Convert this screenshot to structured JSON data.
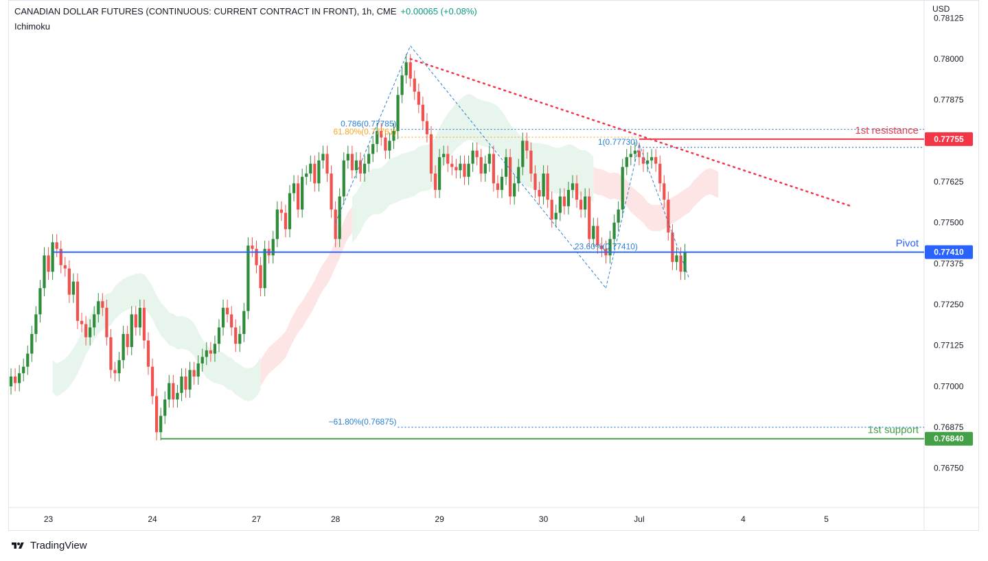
{
  "header": {
    "title": "CANADIAN DOLLAR FUTURES (CONTINUOUS: CURRENT CONTRACT IN FRONT), 1h, CME",
    "change": "+0.00065 (+0.08%)",
    "indicator": "Ichimoku",
    "currency": "USD"
  },
  "brand": {
    "name": "TradingView"
  },
  "colors": {
    "up": "#26a69a",
    "candle_up": "#2e8b3a",
    "candle_down": "#ef5350",
    "resistance": "#f23645",
    "pivot": "#2962ff",
    "support": "#43a047",
    "fib_blue": "#2a7fd4",
    "fib_orange": "#f5a623",
    "cloud_green": "#e8f5ec",
    "cloud_red": "#fde5e5"
  },
  "chart_data": {
    "type": "candlestick",
    "title": "CANADIAN DOLLAR FUTURES (CONTINUOUS: CURRENT CONTRACT IN FRONT), 1h, CME",
    "ylim": [
      0.7663,
      0.7818
    ],
    "y_ticks": [
      "0.78125",
      "0.78000",
      "0.77875",
      "0.77625",
      "0.77500",
      "0.77375",
      "0.77250",
      "0.77125",
      "0.77000",
      "0.76875",
      "0.76750"
    ],
    "x_ticks": [
      {
        "label": "23",
        "index": 9
      },
      {
        "label": "24",
        "index": 34
      },
      {
        "label": "27",
        "index": 59
      },
      {
        "label": "28",
        "index": 78
      },
      {
        "label": "29",
        "index": 103
      },
      {
        "label": "30",
        "index": 128
      },
      {
        "label": "Jul",
        "index": 151
      },
      {
        "label": "4",
        "index": 176
      },
      {
        "label": "5",
        "index": 196
      }
    ],
    "x_count": 220,
    "closes": [
      0.7703,
      0.7701,
      0.7704,
      0.7706,
      0.771,
      0.7716,
      0.7722,
      0.773,
      0.774,
      0.7735,
      0.7744,
      0.7742,
      0.7737,
      0.7736,
      0.7728,
      0.7732,
      0.772,
      0.7719,
      0.7715,
      0.7718,
      0.7722,
      0.7726,
      0.7724,
      0.7715,
      0.7705,
      0.7704,
      0.7708,
      0.7716,
      0.7712,
      0.7722,
      0.7718,
      0.7724,
      0.7714,
      0.7706,
      0.7697,
      0.7686,
      0.7691,
      0.7696,
      0.7701,
      0.7696,
      0.7698,
      0.7703,
      0.7699,
      0.7705,
      0.7703,
      0.7707,
      0.7709,
      0.7711,
      0.771,
      0.7713,
      0.7718,
      0.7724,
      0.7722,
      0.7718,
      0.7713,
      0.7716,
      0.7723,
      0.7743,
      0.7742,
      0.7737,
      0.773,
      0.7742,
      0.774,
      0.7745,
      0.7754,
      0.7753,
      0.7748,
      0.7759,
      0.7762,
      0.7754,
      0.7764,
      0.7765,
      0.7768,
      0.7762,
      0.7769,
      0.7771,
      0.7765,
      0.7754,
      0.7745,
      0.7758,
      0.7769,
      0.7771,
      0.7766,
      0.7769,
      0.7765,
      0.7768,
      0.7771,
      0.7774,
      0.7778,
      0.7776,
      0.7772,
      0.7775,
      0.7778,
      0.7789,
      0.7795,
      0.7799,
      0.7794,
      0.779,
      0.7786,
      0.7781,
      0.7777,
      0.7765,
      0.776,
      0.777,
      0.7771,
      0.7768,
      0.7767,
      0.7766,
      0.7768,
      0.7764,
      0.7768,
      0.7772,
      0.777,
      0.7765,
      0.7768,
      0.7771,
      0.7762,
      0.776,
      0.7764,
      0.777,
      0.7758,
      0.7762,
      0.7767,
      0.7775,
      0.7772,
      0.7765,
      0.776,
      0.7758,
      0.7765,
      0.7757,
      0.7751,
      0.7753,
      0.7758,
      0.7755,
      0.776,
      0.7762,
      0.7757,
      0.7754,
      0.7758,
      0.7745,
      0.7749,
      0.7743,
      0.7742,
      0.774,
      0.7745,
      0.775,
      0.7754,
      0.7767,
      0.777,
      0.7771,
      0.7772,
      0.777,
      0.7768,
      0.7769,
      0.777,
      0.7768,
      0.7762,
      0.7757,
      0.7747,
      0.7738,
      0.774,
      0.7735,
      0.7741
    ],
    "levels": [
      {
        "name": "1st resistance",
        "value": 0.77755,
        "label": "0.77755",
        "text": "1st resistance"
      },
      {
        "name": "Pivot",
        "value": 0.7741,
        "label": "0.77410",
        "text": "Pivot"
      },
      {
        "name": "1st support",
        "value": 0.7684,
        "label": "0.76840",
        "text": "1st support"
      }
    ],
    "fib_labels": [
      {
        "text": "0.786(0.77785)",
        "value": 0.77785
      },
      {
        "text": "61.80%(0.77761)",
        "value": 0.77761
      },
      {
        "text": "1(0.77730)",
        "value": 0.7773
      },
      {
        "text": "23.60%(0.77410)",
        "value": 0.7741
      },
      {
        "text": "−61.80%(0.76875)",
        "value": 0.76875
      }
    ],
    "trendline": {
      "from": [
        96,
        0.78
      ],
      "to": [
        202,
        0.7755
      ]
    }
  }
}
